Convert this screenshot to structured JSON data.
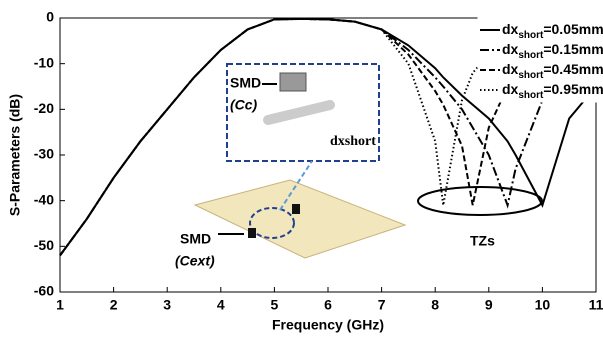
{
  "chart_data": {
    "type": "line",
    "xlabel": "Frequency (GHz)",
    "ylabel": "S-Parameters (dB)",
    "xlim": [
      1,
      11
    ],
    "ylim": [
      -60,
      0
    ],
    "xticks": [
      1,
      2,
      3,
      4,
      5,
      6,
      7,
      8,
      9,
      10,
      11
    ],
    "yticks": [
      0,
      -10,
      -20,
      -30,
      -40,
      -50,
      -60
    ],
    "legend": "upper right",
    "x": [
      1,
      1.5,
      2,
      2.5,
      3,
      3.5,
      4,
      4.5,
      5,
      5.5,
      6,
      6.5,
      7,
      7.5,
      8,
      8.15,
      8.5,
      8.7,
      9,
      9.35,
      9.5,
      10,
      10.5,
      11
    ],
    "series": [
      {
        "name": "dxshort=0.05mm",
        "color": "#000000",
        "style": "solid",
        "values": [
          -52,
          -44,
          -35,
          -27,
          -20,
          -13,
          -7,
          -2.5,
          -0.3,
          -0.2,
          -0.3,
          -0.8,
          -2.5,
          -6,
          -11,
          -13,
          -17,
          -19,
          -22,
          -27,
          -30,
          -41,
          -22,
          -15
        ]
      },
      {
        "name": "dxshort=0.15mm",
        "color": "#000000",
        "style": "dashdot",
        "values": [
          -52,
          -44,
          -35,
          -27,
          -20,
          -13,
          -7,
          -2.5,
          -0.3,
          -0.2,
          -0.3,
          -0.8,
          -2.5,
          -7,
          -13,
          -15,
          -20,
          -24,
          -30,
          -41,
          -33,
          -18,
          -11,
          -7
        ]
      },
      {
        "name": "dxshort=0.45mm",
        "color": "#000000",
        "style": "dashed",
        "values": [
          -52,
          -44,
          -35,
          -27,
          -20,
          -13,
          -7,
          -2.5,
          -0.3,
          -0.2,
          -0.3,
          -0.8,
          -2.5,
          -8,
          -16,
          -19,
          -28,
          -41,
          -24,
          -15,
          -12,
          -7,
          -4,
          -3
        ]
      },
      {
        "name": "dxshort=0.95mm",
        "color": "#000000",
        "style": "dotted",
        "values": [
          -52,
          -44,
          -35,
          -27,
          -20,
          -13,
          -7,
          -2.5,
          -0.3,
          -0.2,
          -0.3,
          -0.8,
          -2.5,
          -10,
          -27,
          -41,
          -18,
          -12,
          -8,
          -5,
          -4,
          -2.5,
          -2,
          -1.5
        ]
      }
    ],
    "annotations": [
      "SMD",
      "(Cc)",
      "dxshort",
      "SMD",
      "(Cext)",
      "TZs"
    ]
  }
}
